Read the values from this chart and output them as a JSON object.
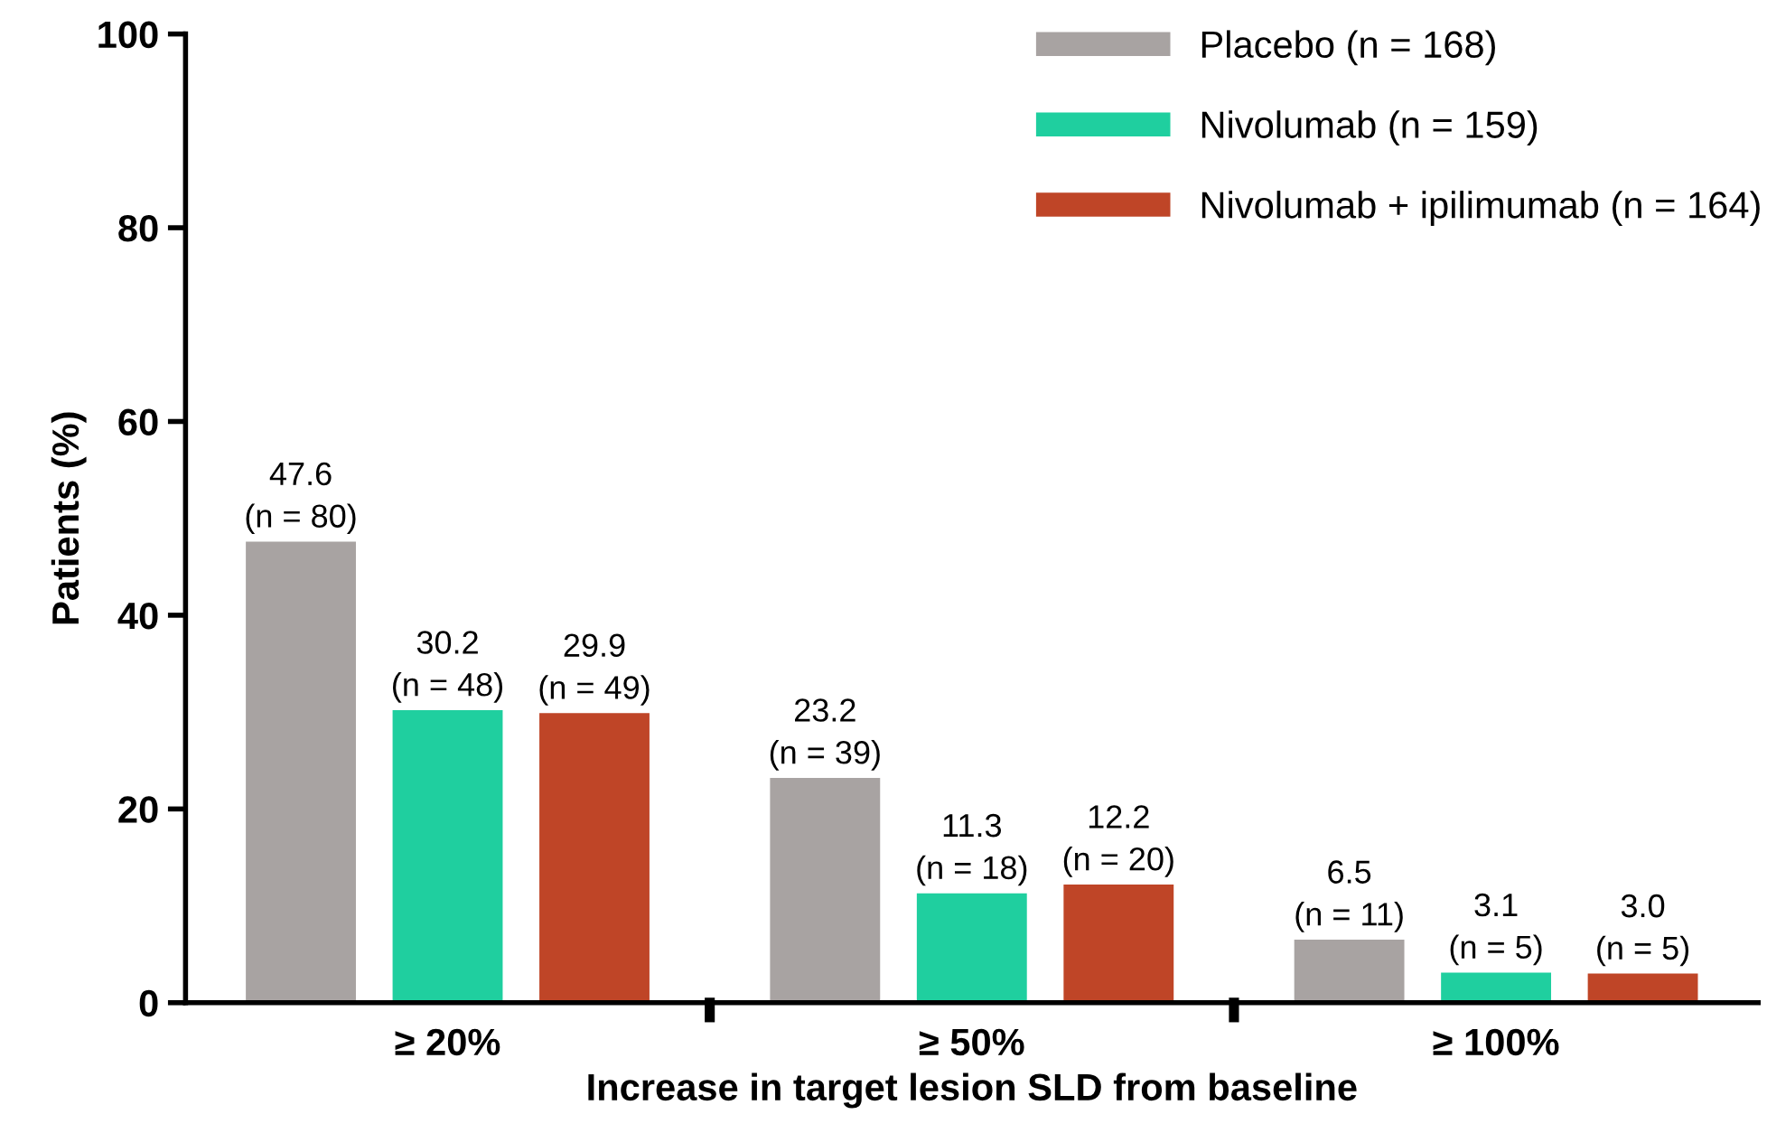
{
  "chart_data": {
    "type": "bar",
    "xlabel": "Increase in target lesion SLD from baseline",
    "ylabel": "Patients (%)",
    "categories": [
      "≥ 20%",
      "≥ 50%",
      "≥ 100%"
    ],
    "series": [
      {
        "name": "Placebo (n = 168)",
        "color": "#a8a3a2",
        "values": [
          47.6,
          23.2,
          6.5
        ],
        "value_labels": [
          "47.6\n(n = 80)",
          "23.2\n(n = 39)",
          "6.5\n(n = 11)"
        ]
      },
      {
        "name": "Nivolumab (n = 159)",
        "color": "#1fcf9f",
        "values": [
          30.2,
          11.3,
          3.1
        ],
        "value_labels": [
          "30.2\n(n = 48)",
          "11.3\n(n = 18)",
          "3.1\n(n = 5)"
        ]
      },
      {
        "name": "Nivolumab + ipilimumab (n = 164)",
        "color": "#bf4527",
        "values": [
          29.9,
          12.2,
          3.0
        ],
        "value_labels": [
          "29.9\n(n = 49)",
          "12.2\n(n = 20)",
          "3.0\n(n = 5)"
        ]
      }
    ],
    "ylim": [
      0,
      100
    ],
    "yticks": [
      0,
      20,
      40,
      60,
      80,
      100
    ],
    "grid": false,
    "legend": "top right"
  }
}
